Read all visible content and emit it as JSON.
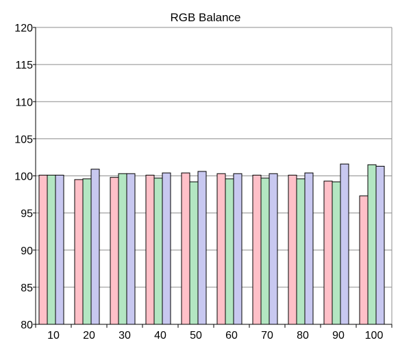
{
  "chart_data": {
    "type": "bar",
    "title": "RGB Balance",
    "xlabel": "",
    "ylabel": "",
    "categories": [
      "10",
      "20",
      "30",
      "40",
      "50",
      "60",
      "70",
      "80",
      "90",
      "100"
    ],
    "series": [
      {
        "color": "#ffc0c8",
        "values": [
          100.1,
          99.5,
          99.8,
          100.1,
          100.4,
          100.3,
          100.1,
          100.1,
          99.3,
          97.3
        ]
      },
      {
        "color": "#b3e6c2",
        "values": [
          100.1,
          99.6,
          100.3,
          99.7,
          99.2,
          99.6,
          99.7,
          99.6,
          99.2,
          101.5
        ]
      },
      {
        "color": "#c8c8f0",
        "values": [
          100.1,
          100.9,
          100.3,
          100.4,
          100.6,
          100.3,
          100.3,
          100.4,
          101.6,
          101.3
        ]
      }
    ],
    "ylim": [
      80,
      120
    ],
    "yticks": [
      80,
      85,
      90,
      95,
      100,
      105,
      110,
      115,
      120
    ],
    "grid": true,
    "legend": "none"
  }
}
